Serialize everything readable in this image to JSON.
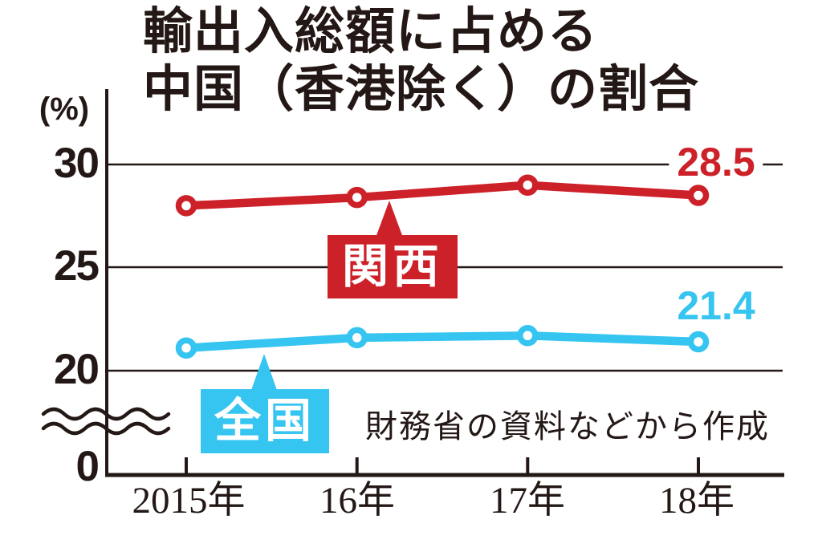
{
  "title": {
    "line1": "輸出入総額に占める",
    "line2": "中国（香港除く）の割合"
  },
  "y_axis": {
    "unit_label": "(%)",
    "ticks": [
      "30",
      "25",
      "20",
      "0"
    ],
    "axis_break": true
  },
  "source_note": "財務省の資料などから作成",
  "colors": {
    "ink": "#231815",
    "kansai_red": "#cd2129",
    "national_cyan": "#35c5f0",
    "background": "#ffffff",
    "callout_text": "#ffffff"
  },
  "chart_data": {
    "type": "line",
    "title": "輸出入総額に占める中国（香港除く）の割合",
    "ylabel": "(%)",
    "categories": [
      "2015年",
      "16年",
      "17年",
      "18年"
    ],
    "series": [
      {
        "key": "kansai",
        "name": "関西",
        "color": "#cd2129",
        "values": [
          28.0,
          28.4,
          29.0,
          28.5
        ],
        "end_label": "28.5"
      },
      {
        "key": "zenkoku",
        "name": "全国",
        "color": "#35c5f0",
        "values": [
          21.1,
          21.6,
          21.7,
          21.4
        ],
        "end_label": "21.4"
      }
    ],
    "ylim_display": [
      20,
      30
    ],
    "y_axis_break_to_zero": true,
    "grid": true,
    "legend_position": "inline-callouts",
    "annotations": [
      "28.5",
      "21.4",
      "財務省の資料などから作成"
    ]
  }
}
